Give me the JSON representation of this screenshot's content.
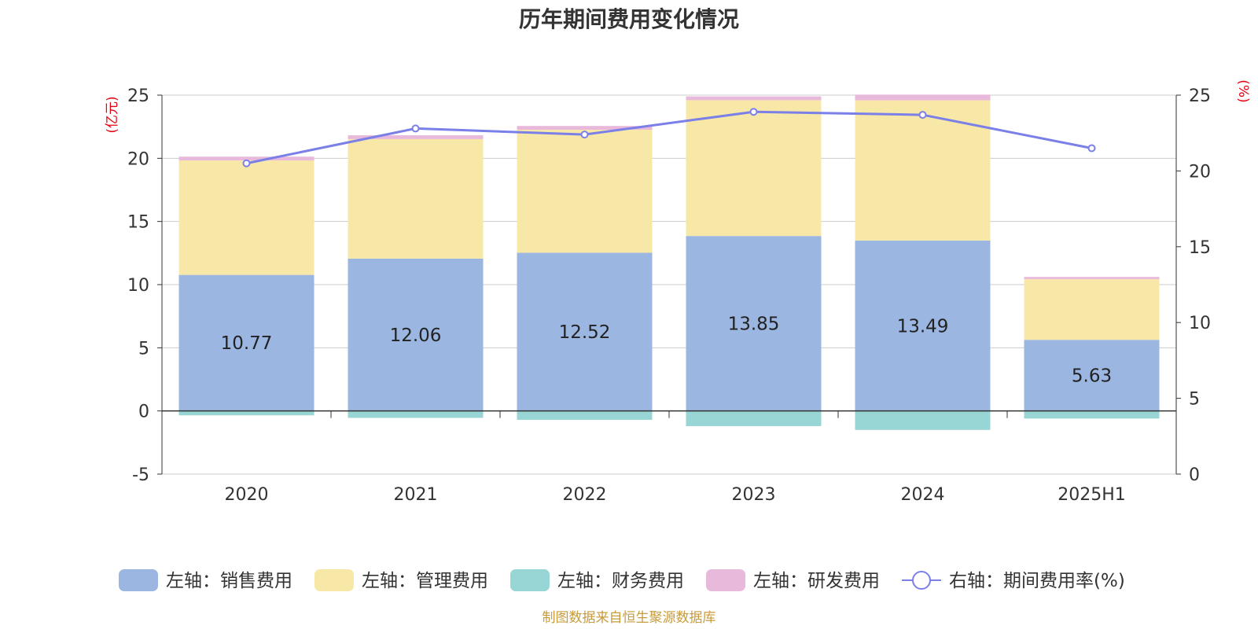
{
  "chart_data": {
    "type": "bar",
    "stacked": true,
    "title": "历年期间费用变化情况",
    "categories": [
      "2020",
      "2021",
      "2022",
      "2023",
      "2024",
      "2025H1"
    ],
    "left_axis": {
      "unit": "(亿元)",
      "range": [
        -5,
        25
      ],
      "ticks": [
        "25",
        "20",
        "15",
        "10",
        "5",
        "0",
        "-5"
      ]
    },
    "right_axis": {
      "unit": "(%)",
      "range": [
        0,
        25
      ],
      "ticks": [
        "25",
        "20",
        "15",
        "10",
        "5",
        "0"
      ]
    },
    "series": [
      {
        "name": "左轴：销售费用",
        "axis": "left",
        "type": "bar",
        "color": "#9bb7e1",
        "values": [
          10.77,
          12.06,
          12.52,
          13.85,
          13.49,
          5.63
        ],
        "labels": [
          "10.77",
          "12.06",
          "12.52",
          "13.85",
          "13.49",
          "5.63"
        ]
      },
      {
        "name": "左轴：管理费用",
        "axis": "left",
        "type": "bar",
        "color": "#f8e8a8",
        "values": [
          9.06,
          9.46,
          9.74,
          10.75,
          11.1,
          4.8
        ]
      },
      {
        "name": "左轴：财务费用",
        "axis": "left",
        "type": "bar",
        "color": "#98d5d5",
        "values": [
          -0.35,
          -0.55,
          -0.7,
          -1.2,
          -1.5,
          -0.6
        ]
      },
      {
        "name": "左轴：研发费用",
        "axis": "left",
        "type": "bar",
        "color": "#e8b9da",
        "values": [
          0.3,
          0.3,
          0.3,
          0.3,
          0.45,
          0.18
        ]
      },
      {
        "name": "右轴：期间费用率(%)",
        "axis": "right",
        "type": "line",
        "color": "#7b7fe8",
        "values": [
          20.5,
          22.8,
          22.4,
          23.9,
          23.7,
          21.5
        ]
      }
    ],
    "grid": true,
    "legend_position": "bottom"
  },
  "source_note": "制图数据来自恒生聚源数据库",
  "colors": {
    "axis_unit": "#e60012",
    "source": "#c89b3c",
    "grid": "#cccccc",
    "axis": "#333333"
  }
}
